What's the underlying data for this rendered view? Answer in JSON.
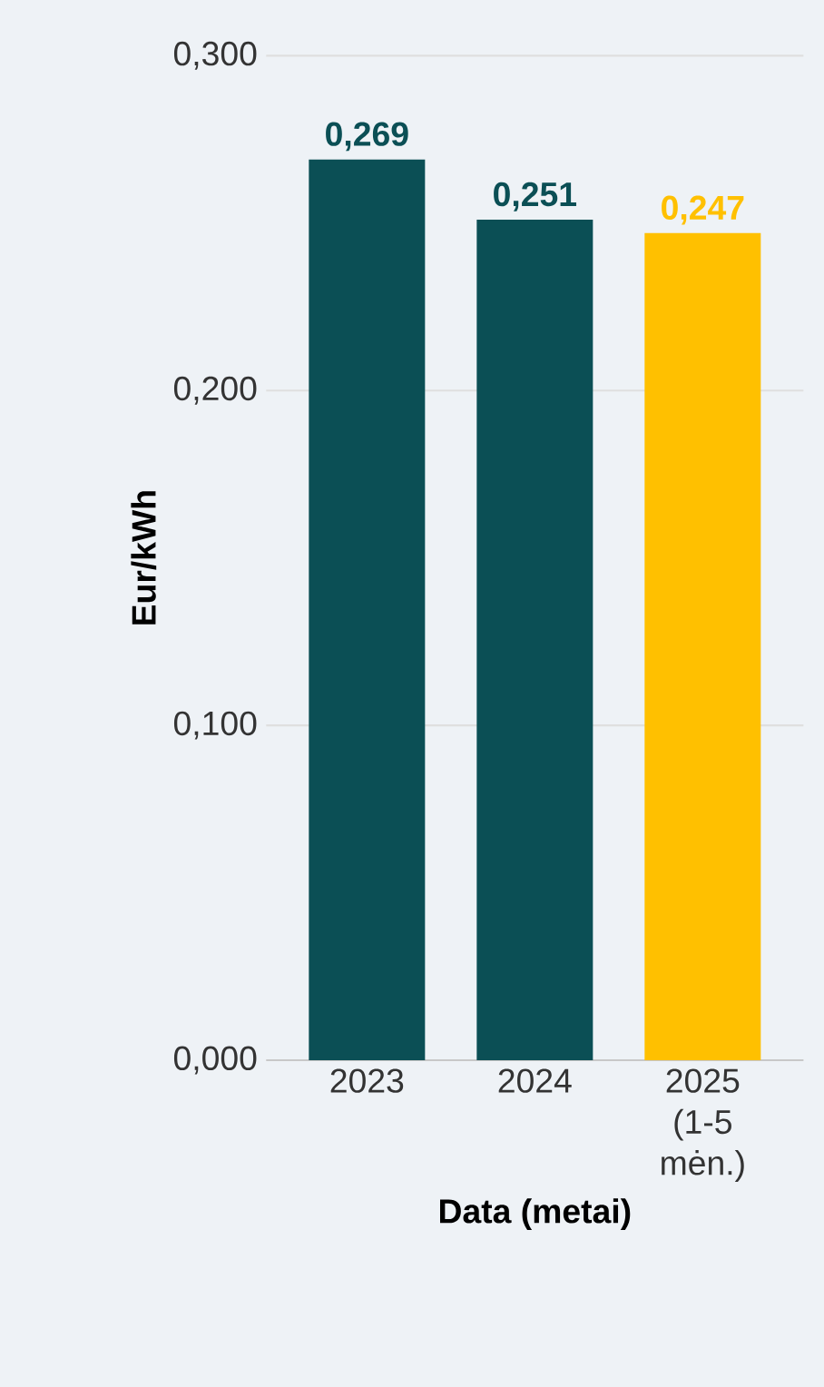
{
  "chart_data": {
    "type": "bar",
    "xlabel": "Data (metai)",
    "ylabel": "Eur/kWh",
    "categories": [
      "2023",
      "2024",
      "2025 (1-5 mėn.)"
    ],
    "values": [
      0.269,
      0.251,
      0.247
    ],
    "colors": [
      "#0b4f55",
      "#0b4f55",
      "#ffc000"
    ],
    "value_labels": [
      "0,269",
      "0,251",
      "0,247"
    ],
    "ylim": [
      0,
      0.3
    ],
    "yticks": [
      {
        "value": 0,
        "label": "0,000"
      },
      {
        "value": 0.1,
        "label": "0,100"
      },
      {
        "value": 0.2,
        "label": "0,200"
      },
      {
        "value": 0.3,
        "label": "0,300"
      }
    ],
    "grid": "y"
  }
}
